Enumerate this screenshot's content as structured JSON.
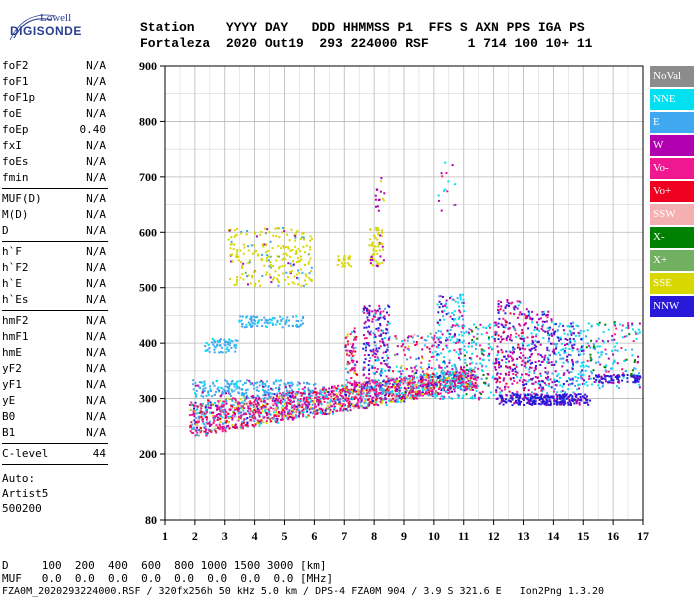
{
  "logo": {
    "line1": "Lowell",
    "line2": "DIGISONDE"
  },
  "header": {
    "line1": "Station    YYYY DAY   DDD HHMMSS P1  FFS S AXN PPS IGA PS",
    "line2": "Fortaleza  2020 Out19  293 224000 RSF     1 714 100 10+ 11"
  },
  "params_group1": [
    {
      "name": "foF2",
      "value": "N/A"
    },
    {
      "name": "foF1",
      "value": "N/A"
    },
    {
      "name": "foF1p",
      "value": "N/A"
    },
    {
      "name": "foE",
      "value": "N/A"
    },
    {
      "name": "foEp",
      "value": "0.40"
    },
    {
      "name": "fxI",
      "value": "N/A"
    },
    {
      "name": "foEs",
      "value": "N/A"
    },
    {
      "name": "fmin",
      "value": "N/A"
    }
  ],
  "params_group2": [
    {
      "name": "MUF(D)",
      "value": "N/A"
    },
    {
      "name": "M(D)",
      "value": "N/A"
    },
    {
      "name": "D",
      "value": "N/A"
    }
  ],
  "params_group3": [
    {
      "name": "h`F",
      "value": "N/A"
    },
    {
      "name": "h`F2",
      "value": "N/A"
    },
    {
      "name": "h`E",
      "value": "N/A"
    },
    {
      "name": "h`Es",
      "value": "N/A"
    }
  ],
  "params_group4": [
    {
      "name": "hmF2",
      "value": "N/A"
    },
    {
      "name": "hmF1",
      "value": "N/A"
    },
    {
      "name": "hmE",
      "value": "N/A"
    },
    {
      "name": "yF2",
      "value": "N/A"
    },
    {
      "name": "yF1",
      "value": "N/A"
    },
    {
      "name": "yE",
      "value": "N/A"
    },
    {
      "name": "B0",
      "value": "N/A"
    },
    {
      "name": "B1",
      "value": "N/A"
    }
  ],
  "clevel": {
    "name": "C-level",
    "value": "44"
  },
  "auto": {
    "line1": "Auto:",
    "line2": "Artist5",
    "line3": "500200"
  },
  "legend": [
    {
      "label": "NoVal",
      "color": "#8c8c8c"
    },
    {
      "label": "NNE",
      "color": "#00e0f0"
    },
    {
      "label": "E",
      "color": "#40a8f0"
    },
    {
      "label": "W",
      "color": "#b000b0"
    },
    {
      "label": "Vo-",
      "color": "#f01890"
    },
    {
      "label": "Vo+",
      "color": "#f00020"
    },
    {
      "label": "SSW",
      "color": "#f4b0b0"
    },
    {
      "label": "X-",
      "color": "#008000"
    },
    {
      "label": "X+",
      "color": "#70b060"
    },
    {
      "label": "SSE",
      "color": "#d8d800"
    },
    {
      "label": "NNW",
      "color": "#2818d8"
    }
  ],
  "footer": {
    "line1": "D     100  200  400  600  800 1000 1500 3000 [km]",
    "line2": "MUF   0.0  0.0  0.0  0.0  0.0  0.0  0.0  0.0 [MHz]",
    "line3": "FZA0M_2020293224000.RSF / 320fx256h 50 kHz 5.0 km / DPS-4 FZA0M 904 / 3.9 S 321.6 E   Ion2Png 1.3.20"
  },
  "chart_data": {
    "type": "scatter",
    "x_ticks": [
      "1",
      "2",
      "3",
      "4",
      "5",
      "6",
      "7",
      "8",
      "9",
      "10",
      "11",
      "12",
      "13",
      "14",
      "15",
      "16",
      "17"
    ],
    "y_ticks": [
      "80",
      "200",
      "300",
      "400",
      "500",
      "600",
      "700",
      "800",
      "900"
    ],
    "xlim": [
      1,
      17
    ],
    "ylim": [
      80,
      900
    ],
    "grid": true
  }
}
